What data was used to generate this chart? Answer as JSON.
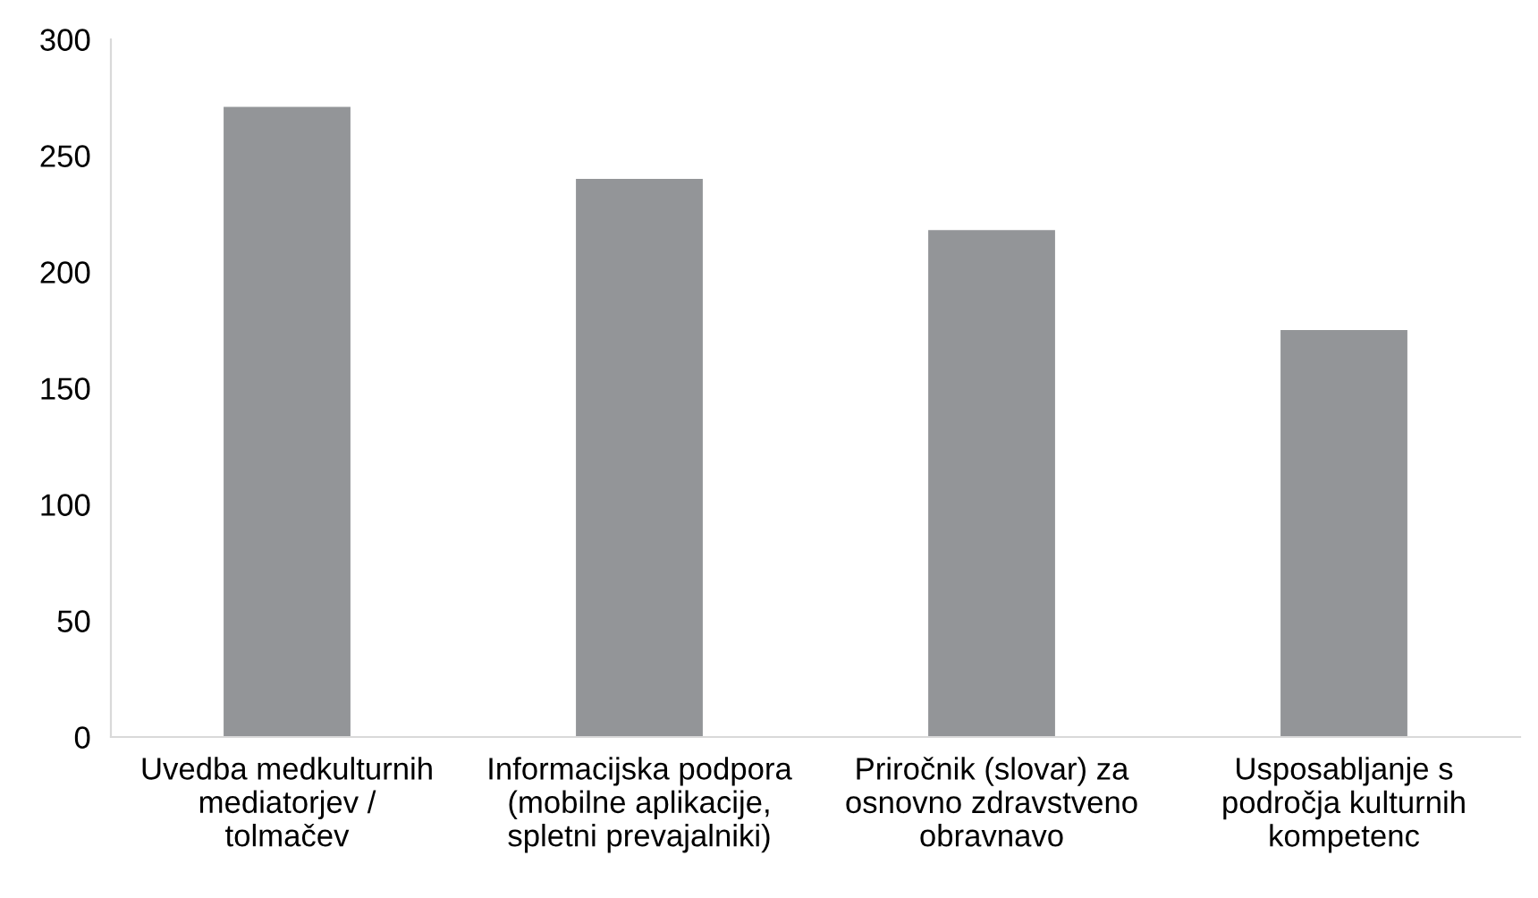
{
  "chart_data": {
    "type": "bar",
    "categories": [
      "Uvedba medkulturnih\nmediatorjev /\ntolmačev",
      "Informacijska podpora\n(mobilne aplikacije,\nspletni prevajalniki)",
      "Priročnik (slovar) za\nosnovno zdravstveno\nobravnavo",
      "Usposabljanje s\npodročja kulturnih\nkompetenc"
    ],
    "values": [
      271,
      240,
      218,
      175
    ],
    "color": "#939598",
    "ylim": [
      0,
      300
    ],
    "yticks": [
      0,
      50,
      100,
      150,
      200,
      250,
      300
    ],
    "grid": false
  }
}
